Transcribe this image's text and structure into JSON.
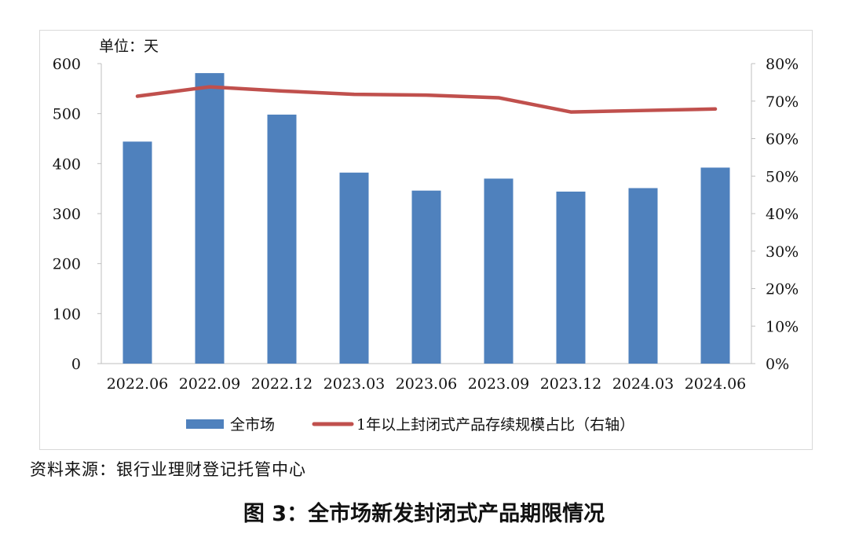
{
  "chart_data": {
    "type": "bar",
    "unit_label": "单位：天",
    "categories": [
      "2022.06",
      "2022.09",
      "2022.12",
      "2023.03",
      "2023.06",
      "2023.09",
      "2023.12",
      "2024.03",
      "2024.06"
    ],
    "series": [
      {
        "name": "全市场",
        "type": "bar",
        "axis": "left",
        "color": "#4f81bd",
        "values": [
          444,
          581,
          498,
          382,
          346,
          370,
          344,
          351,
          392
        ]
      },
      {
        "name": "1年以上封闭式产品存续规模占比（右轴）",
        "type": "line",
        "axis": "right",
        "color": "#c0504d",
        "values": [
          71.3,
          73.8,
          72.7,
          71.8,
          71.6,
          70.9,
          67.1,
          67.5,
          67.9
        ]
      }
    ],
    "y_left": {
      "min": 0,
      "max": 600,
      "ticks": [
        "0",
        "100",
        "200",
        "300",
        "400",
        "500",
        "600"
      ]
    },
    "y_right": {
      "min": 0,
      "max": 80,
      "ticks": [
        "0%",
        "10%",
        "20%",
        "30%",
        "40%",
        "50%",
        "60%",
        "70%",
        "80%"
      ]
    },
    "grid": false,
    "legend_position": "bottom"
  },
  "source_text": "资料来源：银行业理财登记托管中心",
  "caption": "图 3：全市场新发封闭式产品期限情况"
}
